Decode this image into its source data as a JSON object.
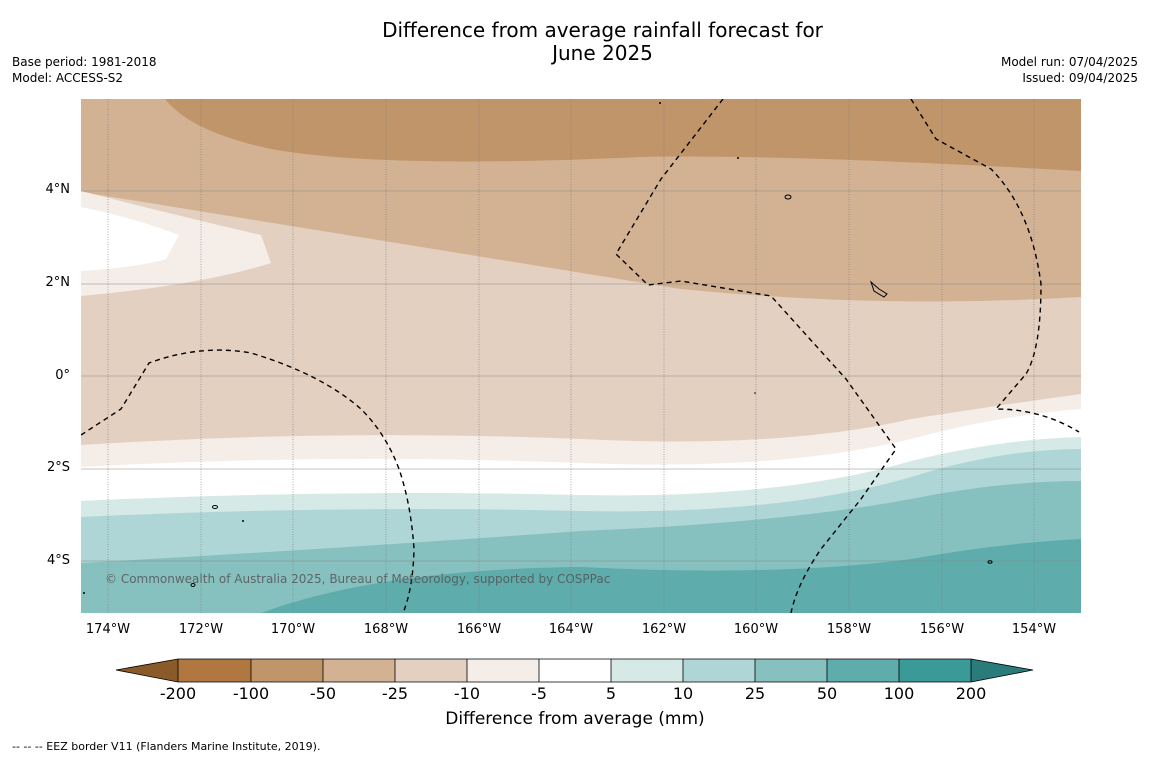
{
  "header": {
    "title_line1": "Difference from average rainfall forecast for",
    "title_line2": "June 2025",
    "base_period": "Base period: 1981-2018",
    "model": "Model: ACCESS-S2",
    "model_run": "Model run: 07/04/2025",
    "issued": "Issued: 09/04/2025"
  },
  "map": {
    "copyright": "© Commonwealth of Australia 2025, Bureau of Meteorology, supported by COSPPac",
    "lat_labels": [
      "4°N",
      "2°N",
      "0°",
      "2°S",
      "4°S"
    ],
    "lon_labels": [
      "174°W",
      "172°W",
      "170°W",
      "168°W",
      "166°W",
      "164°W",
      "162°W",
      "160°W",
      "158°W",
      "156°W",
      "154°W"
    ]
  },
  "legend": {
    "ticks": [
      "-200",
      "-100",
      "-50",
      "-25",
      "-10",
      "-5",
      "5",
      "10",
      "25",
      "50",
      "100",
      "200"
    ],
    "colors": [
      "#8b5a2b",
      "#b07840",
      "#c0956a",
      "#d3b294",
      "#e3d0c0",
      "#f5ede8",
      "#ffffff",
      "#d5e9e7",
      "#afd6d6",
      "#86c1c0",
      "#5eacac",
      "#3a9a98",
      "#2a7c7a"
    ],
    "title": "Difference from average (mm)"
  },
  "footnote": "--  --  -- EEZ border V11 (Flanders Marine Institute, 2019)."
}
